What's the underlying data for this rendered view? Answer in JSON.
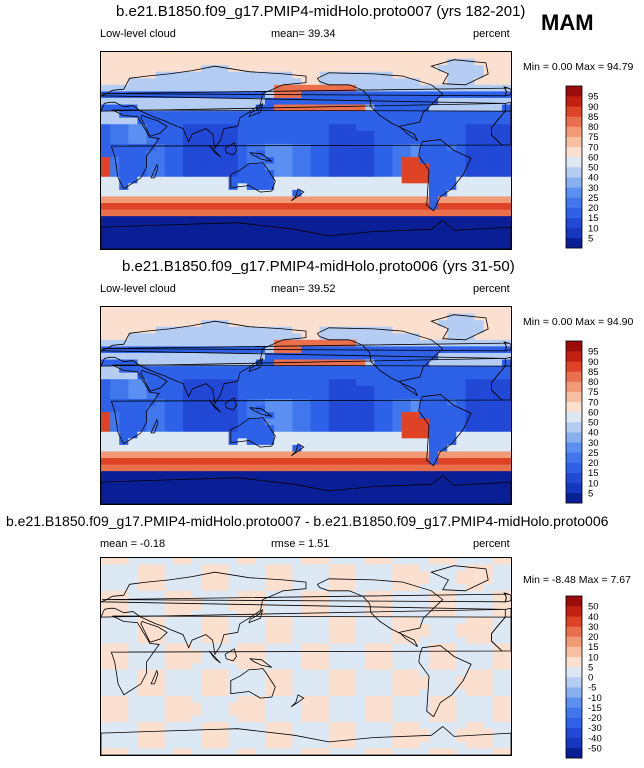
{
  "season": "MAM",
  "panels": [
    {
      "title": "b.e21.B1850.f09_g17.PMIP4-midHolo.proto007 (yrs 182-201)",
      "left_label": "Low-level cloud",
      "center_label": "mean=  39.34",
      "right_label": "percent",
      "minmax": "Min =   0.00 Max =  94.79",
      "scale": "abs"
    },
    {
      "title": "b.e21.B1850.f09_g17.PMIP4-midHolo.proto006 (yrs 31-50)",
      "left_label": "Low-level cloud",
      "center_label": "mean=  39.52",
      "right_label": "percent",
      "minmax": "Min =   0.00 Max =  94.90",
      "scale": "abs"
    },
    {
      "title": "b.e21.B1850.f09_g17.PMIP4-midHolo.proto007 - b.e21.B1850.f09_g17.PMIP4-midHolo.proto006",
      "left_label": "mean =  -0.18",
      "center_label": "rmse =   1.51",
      "right_label": "percent",
      "minmax": "Min =  -8.48 Max =   7.67",
      "scale": "diff"
    }
  ],
  "chart_data": [
    {
      "type": "heatmap",
      "title": "b.e21.B1850.f09_g17.PMIP4-midHolo.proto007 (yrs 182-201)",
      "variable": "Low-level cloud",
      "units": "percent",
      "mean": 39.34,
      "min": 0.0,
      "max": 94.79,
      "colorbar_levels": [
        5,
        10,
        15,
        20,
        25,
        30,
        40,
        50,
        60,
        70,
        75,
        80,
        85,
        90,
        95
      ],
      "colorbar_colors": [
        "#0a1f95",
        "#1637c0",
        "#2149d6",
        "#2d62e8",
        "#4077ed",
        "#5b90f2",
        "#88afef",
        "#b5cdf2",
        "#dde8f5",
        "#fbe0cf",
        "#f8c0a2",
        "#f29a76",
        "#ea6f4c",
        "#de4326",
        "#c41f11",
        "#9c0c0a"
      ]
    },
    {
      "type": "heatmap",
      "title": "b.e21.B1850.f09_g17.PMIP4-midHolo.proto006 (yrs 31-50)",
      "variable": "Low-level cloud",
      "units": "percent",
      "mean": 39.52,
      "min": 0.0,
      "max": 94.9,
      "colorbar_levels": [
        5,
        10,
        15,
        20,
        25,
        30,
        40,
        50,
        60,
        70,
        75,
        80,
        85,
        90,
        95
      ],
      "colorbar_colors": [
        "#0a1f95",
        "#1637c0",
        "#2149d6",
        "#2d62e8",
        "#4077ed",
        "#5b90f2",
        "#88afef",
        "#b5cdf2",
        "#dde8f5",
        "#fbe0cf",
        "#f8c0a2",
        "#f29a76",
        "#ea6f4c",
        "#de4326",
        "#c41f11",
        "#9c0c0a"
      ]
    },
    {
      "type": "heatmap",
      "title": "b.e21.B1850.f09_g17.PMIP4-midHolo.proto007 - b.e21.B1850.f09_g17.PMIP4-midHolo.proto006",
      "units": "percent",
      "mean": -0.18,
      "rmse": 1.51,
      "min": -8.48,
      "max": 7.67,
      "colorbar_levels": [
        -50,
        -40,
        -30,
        -20,
        -15,
        -10,
        -5,
        0,
        5,
        10,
        15,
        20,
        30,
        40,
        50
      ],
      "colorbar_colors": [
        "#0a1f95",
        "#1637c0",
        "#2149d6",
        "#2d62e8",
        "#4077ed",
        "#5b90f2",
        "#88afef",
        "#b5cdf2",
        "#dde8f5",
        "#fbe0cf",
        "#f8c0a2",
        "#f29a76",
        "#ea6f4c",
        "#de4326",
        "#c41f11",
        "#9c0c0a"
      ]
    }
  ]
}
